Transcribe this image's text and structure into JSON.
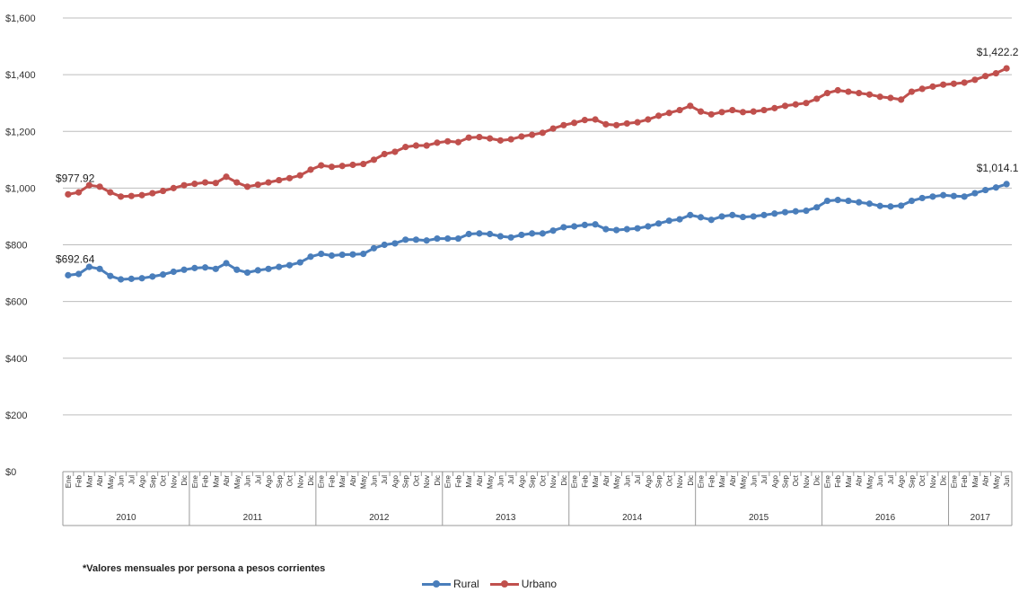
{
  "chart_data": {
    "type": "line",
    "title": "",
    "xlabel": "",
    "ylabel": "",
    "ylim": [
      0,
      1600
    ],
    "yticks": [
      0,
      200,
      400,
      600,
      800,
      1000,
      1200,
      1400,
      1600
    ],
    "ytick_labels": [
      "$0",
      "$200",
      "$400",
      "$600",
      "$800",
      "$1,000",
      "$1,200",
      "$1,400",
      "$1,600"
    ],
    "grid": true,
    "legend_position": "bottom",
    "month_labels": [
      "Ene",
      "Feb",
      "Mar",
      "Abr",
      "May",
      "Jun",
      "Jul",
      "Ago",
      "Sep",
      "Oct",
      "Nov",
      "Dic"
    ],
    "years": [
      {
        "label": "2010",
        "months": 12
      },
      {
        "label": "2011",
        "months": 12
      },
      {
        "label": "2012",
        "months": 12
      },
      {
        "label": "2013",
        "months": 12
      },
      {
        "label": "2014",
        "months": 12
      },
      {
        "label": "2015",
        "months": 12
      },
      {
        "label": "2016",
        "months": 12
      },
      {
        "label": "2017",
        "months": 6
      }
    ],
    "series": [
      {
        "name": "Rural",
        "color": "#4a7ebb",
        "values": [
          692.64,
          697,
          722,
          715,
          690,
          678,
          680,
          682,
          688,
          695,
          705,
          712,
          718,
          720,
          715,
          735,
          712,
          702,
          710,
          715,
          722,
          728,
          738,
          758,
          768,
          762,
          765,
          766,
          768,
          788,
          800,
          805,
          818,
          818,
          815,
          822,
          822,
          822,
          838,
          840,
          838,
          830,
          826,
          835,
          840,
          840,
          850,
          862,
          865,
          870,
          872,
          855,
          852,
          855,
          858,
          865,
          875,
          885,
          890,
          905,
          897,
          888,
          900,
          905,
          898,
          900,
          905,
          910,
          915,
          918,
          920,
          932,
          955,
          958,
          955,
          950,
          945,
          937,
          935,
          938,
          955,
          965,
          970,
          975,
          972,
          970,
          982,
          993,
          1002,
          1014.15
        ]
      },
      {
        "name": "Urbano",
        "color": "#c0504d",
        "values": [
          977.92,
          985,
          1010,
          1005,
          985,
          970,
          972,
          975,
          982,
          990,
          1000,
          1010,
          1015,
          1020,
          1018,
          1040,
          1020,
          1005,
          1012,
          1020,
          1028,
          1035,
          1045,
          1065,
          1080,
          1075,
          1078,
          1082,
          1085,
          1100,
          1120,
          1128,
          1145,
          1150,
          1150,
          1160,
          1165,
          1162,
          1178,
          1180,
          1175,
          1168,
          1172,
          1182,
          1188,
          1195,
          1210,
          1222,
          1230,
          1240,
          1242,
          1225,
          1222,
          1228,
          1232,
          1242,
          1255,
          1265,
          1275,
          1290,
          1270,
          1260,
          1268,
          1275,
          1268,
          1270,
          1275,
          1282,
          1290,
          1295,
          1300,
          1315,
          1335,
          1345,
          1340,
          1335,
          1330,
          1322,
          1318,
          1312,
          1340,
          1350,
          1358,
          1365,
          1368,
          1372,
          1382,
          1395,
          1405,
          1422.25
        ]
      }
    ],
    "annotations": [
      {
        "series": "Rural",
        "index": 0,
        "text": "$692.64"
      },
      {
        "series": "Rural",
        "index": 89,
        "text": "$1,014.15"
      },
      {
        "series": "Urbano",
        "index": 0,
        "text": "$977.92"
      },
      {
        "series": "Urbano",
        "index": 89,
        "text": "$1,422.25"
      }
    ]
  },
  "footnote": "*Valores mensuales por persona a pesos corrientes",
  "legend": [
    {
      "name": "Rural",
      "color": "#4a7ebb"
    },
    {
      "name": "Urbano",
      "color": "#c0504d"
    }
  ]
}
